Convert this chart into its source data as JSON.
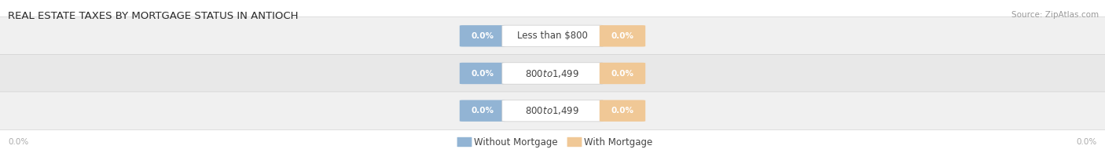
{
  "title": "REAL ESTATE TAXES BY MORTGAGE STATUS IN ANTIOCH",
  "source": "Source: ZipAtlas.com",
  "categories": [
    "Less than $800",
    "$800 to $1,499",
    "$800 to $1,499"
  ],
  "without_mortgage": [
    0.0,
    0.0,
    0.0
  ],
  "with_mortgage": [
    0.0,
    0.0,
    0.0
  ],
  "without_mortgage_color": "#92b4d4",
  "with_mortgage_color": "#f0c896",
  "row_bg_colors": [
    "#f0f0f0",
    "#e8e8e8",
    "#f0f0f0"
  ],
  "title_fontsize": 9.5,
  "source_fontsize": 7.5,
  "value_fontsize": 7.5,
  "cat_fontsize": 8.5,
  "legend_fontsize": 8.5,
  "axis_label_color": "#aaaaaa",
  "text_color_dark": "#444444",
  "text_color_white": "#ffffff",
  "left_label": "0.0%",
  "right_label": "0.0%",
  "figsize": [
    14.06,
    1.95
  ],
  "dpi": 100
}
